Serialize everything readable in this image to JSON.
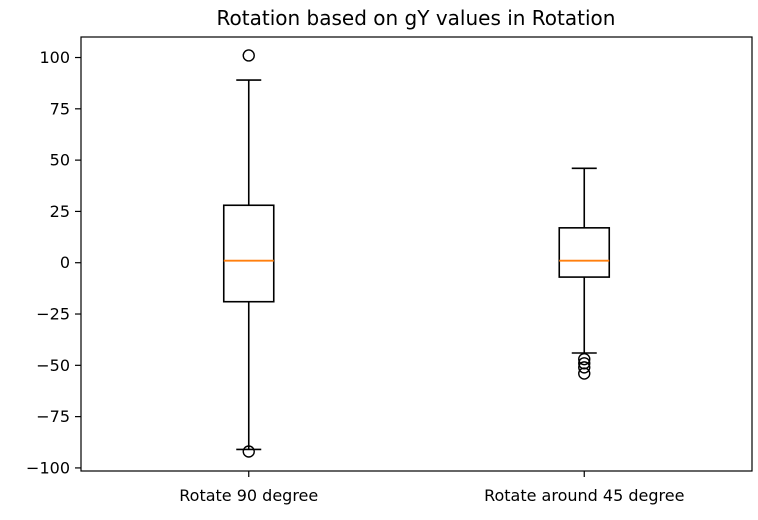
{
  "chart_data": {
    "type": "box",
    "title": "Rotation based on gY values in Rotation",
    "xlabel": "",
    "ylabel": "",
    "ylim": [
      -101.5,
      110
    ],
    "y_ticks": [
      100,
      75,
      50,
      25,
      0,
      -25,
      -50,
      -75,
      -100
    ],
    "y_tick_labels": [
      "100",
      "75",
      "50",
      "25",
      "0",
      "−25",
      "−50",
      "−75",
      "−100"
    ],
    "grid": false,
    "median_color": "#ff7f0e",
    "box_color": "#000000",
    "series": [
      {
        "category": "Rotate 90 degree",
        "whisker_low": -91,
        "q1": -19,
        "median": 1,
        "q3": 28,
        "whisker_high": 89,
        "outliers": [
          101,
          -92
        ]
      },
      {
        "category": "Rotate around 45 degree",
        "whisker_low": -44,
        "q1": -7,
        "median": 1,
        "q3": 17,
        "whisker_high": 46,
        "outliers": [
          -47,
          -49,
          -51,
          -54
        ]
      }
    ]
  }
}
